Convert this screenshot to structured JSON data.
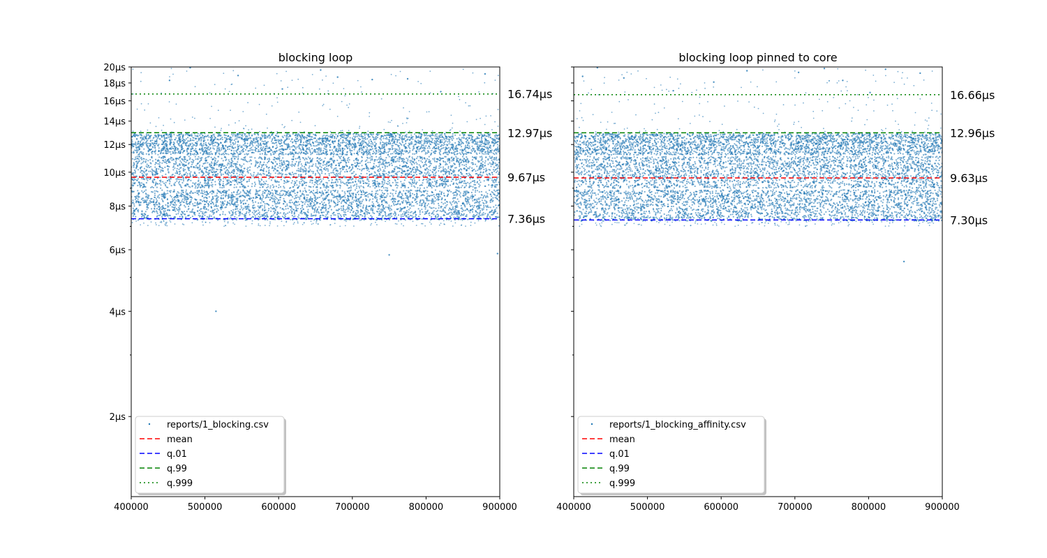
{
  "chart_data": [
    {
      "type": "scatter",
      "title": "blocking loop",
      "xlim": [
        400000,
        900000
      ],
      "ylim_us": [
        1.18,
        20
      ],
      "yscale": "log",
      "x_ticks": [
        "400000",
        "500000",
        "600000",
        "700000",
        "800000",
        "900000"
      ],
      "y_ticks": [
        {
          "value": 2,
          "label": "2µs"
        },
        {
          "value": 4,
          "label": "4µs"
        },
        {
          "value": 6,
          "label": "6µs"
        },
        {
          "value": 8,
          "label": "8µs"
        },
        {
          "value": 10,
          "label": "10µs"
        },
        {
          "value": 12,
          "label": "12µs"
        },
        {
          "value": 14,
          "label": "14µs"
        },
        {
          "value": 16,
          "label": "16µs"
        },
        {
          "value": 18,
          "label": "18µs"
        },
        {
          "value": 20,
          "label": "20µs"
        }
      ],
      "series": {
        "name": "reports/1_blocking.csv",
        "color": "#1f77b4",
        "bands_us": [
          [
            7.3,
            8.9
          ],
          [
            9.0,
            11.1
          ],
          [
            11.2,
            12.9
          ]
        ],
        "outliers": [
          [
            515000,
            4.0
          ],
          [
            750000,
            5.8
          ],
          [
            897000,
            5.85
          ],
          [
            480000,
            19.9
          ],
          [
            657000,
            19.6
          ],
          [
            880000,
            19.1
          ],
          [
            545000,
            18.9
          ],
          [
            680000,
            18.7
          ],
          [
            452000,
            18.3
          ],
          [
            727000,
            18.4
          ],
          [
            775000,
            18.5
          ],
          [
            605000,
            17.3
          ],
          [
            820000,
            17.0
          ]
        ]
      },
      "stats": [
        {
          "name": "q.999",
          "value_us": 16.74,
          "label": "16.74µs",
          "color": "#008000",
          "dash": "2,4",
          "legend_label": "q.999"
        },
        {
          "name": "q.99",
          "value_us": 12.97,
          "label": "12.97µs",
          "color": "#008000",
          "dash": "7,4",
          "legend_label": "q.99"
        },
        {
          "name": "mean",
          "value_us": 9.67,
          "label": "9.67µs",
          "color": "#ff0000",
          "dash": "7,4",
          "legend_label": "mean"
        },
        {
          "name": "q.01",
          "value_us": 7.36,
          "label": "7.36µs",
          "color": "#0000ff",
          "dash": "7,4",
          "legend_label": "q.01"
        }
      ],
      "legend": {
        "placement": "lower-left",
        "entries": [
          {
            "label": "reports/1_blocking.csv",
            "kind": "scatter",
            "color": "#1f77b4"
          },
          {
            "label": "mean",
            "kind": "line",
            "color": "#ff0000",
            "dash": "7,4"
          },
          {
            "label": "q.01",
            "kind": "line",
            "color": "#0000ff",
            "dash": "7,4"
          },
          {
            "label": "q.99",
            "kind": "line",
            "color": "#008000",
            "dash": "7,4"
          },
          {
            "label": "q.999",
            "kind": "line",
            "color": "#008000",
            "dash": "2,4"
          }
        ]
      }
    },
    {
      "type": "scatter",
      "title": "blocking loop pinned to core",
      "xlim": [
        400000,
        900000
      ],
      "ylim_us": [
        1.18,
        20
      ],
      "yscale": "log",
      "x_ticks": [
        "400000",
        "500000",
        "600000",
        "700000",
        "800000",
        "900000"
      ],
      "y_ticks": [
        {
          "value": 2,
          "label": ""
        },
        {
          "value": 4,
          "label": ""
        },
        {
          "value": 6,
          "label": ""
        },
        {
          "value": 8,
          "label": ""
        },
        {
          "value": 10,
          "label": ""
        },
        {
          "value": 12,
          "label": ""
        },
        {
          "value": 14,
          "label": ""
        },
        {
          "value": 16,
          "label": ""
        },
        {
          "value": 18,
          "label": ""
        },
        {
          "value": 20,
          "label": ""
        }
      ],
      "series": {
        "name": "reports/1_blocking_affinity.csv",
        "color": "#1f77b4",
        "bands_us": [
          [
            7.25,
            8.9
          ],
          [
            9.0,
            11.1
          ],
          [
            11.2,
            12.9
          ]
        ],
        "outliers": [
          [
            848000,
            5.55
          ],
          [
            432000,
            19.9
          ],
          [
            740000,
            19.8
          ],
          [
            823000,
            19.7
          ],
          [
            635000,
            19.5
          ],
          [
            705000,
            19.3
          ],
          [
            870000,
            19.2
          ],
          [
            412000,
            18.8
          ],
          [
            468000,
            18.6
          ],
          [
            765000,
            18.3
          ],
          [
            590000,
            18.1
          ],
          [
            535000,
            17.1
          ],
          [
            802000,
            16.9
          ]
        ]
      },
      "stats": [
        {
          "name": "q.999",
          "value_us": 16.66,
          "label": "16.66µs",
          "color": "#008000",
          "dash": "2,4",
          "legend_label": "q.999"
        },
        {
          "name": "q.99",
          "value_us": 12.96,
          "label": "12.96µs",
          "color": "#008000",
          "dash": "7,4",
          "legend_label": "q.99"
        },
        {
          "name": "mean",
          "value_us": 9.63,
          "label": "9.63µs",
          "color": "#ff0000",
          "dash": "7,4",
          "legend_label": "mean"
        },
        {
          "name": "q.01",
          "value_us": 7.3,
          "label": "7.30µs",
          "color": "#0000ff",
          "dash": "7,4",
          "legend_label": "q.01"
        }
      ],
      "legend": {
        "placement": "lower-left",
        "entries": [
          {
            "label": "reports/1_blocking_affinity.csv",
            "kind": "scatter",
            "color": "#1f77b4"
          },
          {
            "label": "mean",
            "kind": "line",
            "color": "#ff0000",
            "dash": "7,4"
          },
          {
            "label": "q.01",
            "kind": "line",
            "color": "#0000ff",
            "dash": "7,4"
          },
          {
            "label": "q.99",
            "kind": "line",
            "color": "#008000",
            "dash": "7,4"
          },
          {
            "label": "q.999",
            "kind": "line",
            "color": "#008000",
            "dash": "2,4"
          }
        ]
      }
    }
  ]
}
